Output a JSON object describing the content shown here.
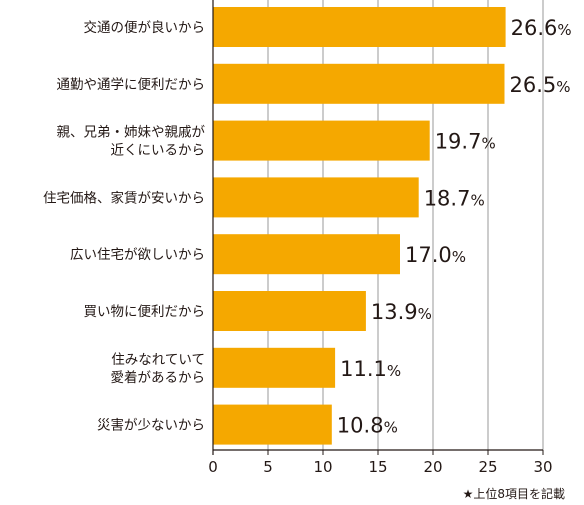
{
  "chart_data": {
    "type": "bar",
    "orientation": "horizontal",
    "categories": [
      [
        "交通の便が良いから"
      ],
      [
        "通勤や通学に便利だから"
      ],
      [
        "親、兄弟・姉妹や親戚が",
        "近くにいるから"
      ],
      [
        "住宅価格、家賃が安いから"
      ],
      [
        "広い住宅が欲しいから"
      ],
      [
        "買い物に便利だから"
      ],
      [
        "住みなれていて",
        "愛着があるから"
      ],
      [
        "災害が少ないから"
      ]
    ],
    "values": [
      26.6,
      26.5,
      19.7,
      18.7,
      17.0,
      13.9,
      11.1,
      10.8
    ],
    "value_labels": [
      "26.6",
      "26.5",
      "19.7",
      "18.7",
      "17.0",
      "13.9",
      "11.1",
      "10.8"
    ],
    "value_suffix": "%",
    "xlim": [
      0,
      30
    ],
    "xticks": [
      0,
      5,
      10,
      15,
      20,
      25,
      30
    ],
    "grid": true,
    "bar_color": "#f5a800",
    "grid_color": "#9a9a9a",
    "note": "★上位8項目を記載"
  }
}
